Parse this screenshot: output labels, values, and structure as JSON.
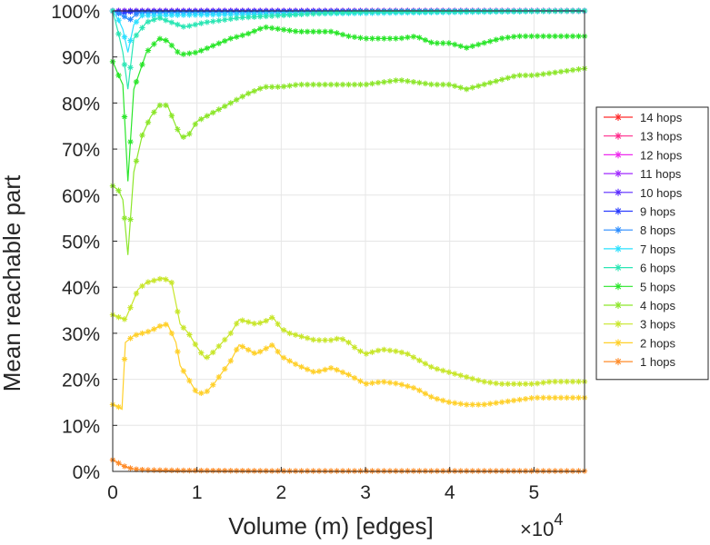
{
  "chart_data": {
    "type": "line",
    "title": "",
    "xlabel": "Volume (m) [edges]",
    "ylabel": "Mean reachable part",
    "x_multiplier_label": {
      "base": "×10",
      "exp": "4"
    },
    "xlim": [
      0,
      56000
    ],
    "ylim": [
      0,
      100
    ],
    "x_ticks": [
      0,
      10000,
      20000,
      30000,
      40000,
      50000
    ],
    "x_tick_labels": [
      "0",
      "1",
      "2",
      "3",
      "4",
      "5"
    ],
    "y_ticks": [
      0,
      10,
      20,
      30,
      40,
      50,
      60,
      70,
      80,
      90,
      100
    ],
    "y_tick_labels": [
      "0%",
      "10%",
      "20%",
      "30%",
      "40%",
      "50%",
      "60%",
      "70%",
      "80%",
      "90%",
      "100%"
    ],
    "grid": true,
    "legend_position": "right",
    "marker": "asterisk",
    "series": [
      {
        "name": "14 hops",
        "color": "#ff2a2a",
        "points": [
          [
            0,
            100
          ],
          [
            56000,
            100
          ]
        ]
      },
      {
        "name": "13 hops",
        "color": "#ff2a8c",
        "points": [
          [
            0,
            100
          ],
          [
            56000,
            100
          ]
        ]
      },
      {
        "name": "12 hops",
        "color": "#ee2aee",
        "points": [
          [
            0,
            100
          ],
          [
            56000,
            100
          ]
        ]
      },
      {
        "name": "11 hops",
        "color": "#a02aff",
        "points": [
          [
            0,
            100
          ],
          [
            56000,
            100
          ]
        ]
      },
      {
        "name": "10 hops",
        "color": "#5a2aff",
        "points": [
          [
            0,
            100
          ],
          [
            56000,
            100
          ]
        ]
      },
      {
        "name": "9 hops",
        "color": "#2a3cff",
        "points": [
          [
            0,
            100
          ],
          [
            1200,
            99.5
          ],
          [
            2000,
            99.8
          ],
          [
            56000,
            100
          ]
        ]
      },
      {
        "name": "8 hops",
        "color": "#2a8cff",
        "points": [
          [
            0,
            100
          ],
          [
            1200,
            99
          ],
          [
            2000,
            98
          ],
          [
            3000,
            99.6
          ],
          [
            56000,
            100
          ]
        ]
      },
      {
        "name": "7 hops",
        "color": "#2ae0ff",
        "points": [
          [
            0,
            100
          ],
          [
            700,
            98
          ],
          [
            1200,
            96
          ],
          [
            1800,
            91
          ],
          [
            2500,
            97
          ],
          [
            3500,
            99
          ],
          [
            56000,
            100
          ]
        ]
      },
      {
        "name": "6 hops",
        "color": "#2ae6b4",
        "points": [
          [
            0,
            100
          ],
          [
            700,
            95
          ],
          [
            1200,
            91
          ],
          [
            1800,
            83
          ],
          [
            2500,
            94
          ],
          [
            4000,
            97.5
          ],
          [
            5500,
            98.5
          ],
          [
            7000,
            97.5
          ],
          [
            8500,
            96.5
          ],
          [
            11000,
            97.5
          ],
          [
            15000,
            98.5
          ],
          [
            20000,
            99
          ],
          [
            25000,
            99.5
          ],
          [
            30000,
            99.8
          ],
          [
            56000,
            100
          ]
        ]
      },
      {
        "name": "5 hops",
        "color": "#2ae62a",
        "points": [
          [
            0,
            89
          ],
          [
            700,
            86
          ],
          [
            1200,
            84
          ],
          [
            1800,
            63
          ],
          [
            2500,
            83
          ],
          [
            4000,
            91
          ],
          [
            5500,
            94
          ],
          [
            6500,
            93.5
          ],
          [
            8000,
            90.5
          ],
          [
            10000,
            91
          ],
          [
            12000,
            92.5
          ],
          [
            14000,
            94
          ],
          [
            16000,
            95
          ],
          [
            18000,
            96.5
          ],
          [
            20000,
            96
          ],
          [
            22000,
            95.5
          ],
          [
            24000,
            95.5
          ],
          [
            26000,
            95.5
          ],
          [
            28000,
            94.5
          ],
          [
            30000,
            94
          ],
          [
            32000,
            94
          ],
          [
            34000,
            94
          ],
          [
            36000,
            94.5
          ],
          [
            38000,
            93
          ],
          [
            40000,
            93
          ],
          [
            42000,
            92
          ],
          [
            44000,
            93
          ],
          [
            46000,
            94
          ],
          [
            48000,
            94.5
          ],
          [
            50000,
            94.5
          ],
          [
            52000,
            94.5
          ],
          [
            54000,
            94.5
          ],
          [
            56000,
            94.5
          ]
        ]
      },
      {
        "name": "4 hops",
        "color": "#8ce62a",
        "points": [
          [
            0,
            62
          ],
          [
            700,
            61
          ],
          [
            1200,
            59
          ],
          [
            1800,
            47
          ],
          [
            2500,
            65
          ],
          [
            3500,
            73
          ],
          [
            4500,
            77
          ],
          [
            5500,
            79.5
          ],
          [
            6500,
            79.5
          ],
          [
            7500,
            75
          ],
          [
            8200,
            72.5
          ],
          [
            9000,
            73
          ],
          [
            10000,
            76
          ],
          [
            12000,
            78
          ],
          [
            14000,
            80
          ],
          [
            16000,
            82
          ],
          [
            18000,
            83.5
          ],
          [
            20000,
            83.5
          ],
          [
            22000,
            84
          ],
          [
            24000,
            84
          ],
          [
            26000,
            84
          ],
          [
            28000,
            84
          ],
          [
            30000,
            84
          ],
          [
            32000,
            84.5
          ],
          [
            34000,
            85
          ],
          [
            36000,
            84.5
          ],
          [
            38000,
            84
          ],
          [
            40000,
            84
          ],
          [
            42000,
            83
          ],
          [
            44000,
            84
          ],
          [
            46000,
            85
          ],
          [
            48000,
            86
          ],
          [
            50000,
            86
          ],
          [
            52000,
            86.5
          ],
          [
            54000,
            87
          ],
          [
            56000,
            87.5
          ]
        ]
      },
      {
        "name": "3 hops",
        "color": "#c8e62a",
        "points": [
          [
            0,
            34
          ],
          [
            700,
            33.5
          ],
          [
            1500,
            33
          ],
          [
            2200,
            36
          ],
          [
            3000,
            39.5
          ],
          [
            4000,
            41
          ],
          [
            5000,
            41.5
          ],
          [
            6000,
            42
          ],
          [
            7000,
            41
          ],
          [
            8000,
            32
          ],
          [
            9000,
            30
          ],
          [
            10000,
            27
          ],
          [
            11000,
            24.5
          ],
          [
            12000,
            26
          ],
          [
            13000,
            28
          ],
          [
            14000,
            30
          ],
          [
            15000,
            33
          ],
          [
            16000,
            32.5
          ],
          [
            17000,
            32
          ],
          [
            18000,
            32.5
          ],
          [
            19000,
            33.5
          ],
          [
            20000,
            31
          ],
          [
            21000,
            30
          ],
          [
            22000,
            29.5
          ],
          [
            24000,
            28.5
          ],
          [
            26000,
            28.5
          ],
          [
            27000,
            29
          ],
          [
            28000,
            28
          ],
          [
            29000,
            26.5
          ],
          [
            30000,
            25.5
          ],
          [
            31000,
            26
          ],
          [
            32000,
            26.5
          ],
          [
            34000,
            26
          ],
          [
            35000,
            25.5
          ],
          [
            36000,
            24.5
          ],
          [
            38000,
            22.5
          ],
          [
            40000,
            21.5
          ],
          [
            42000,
            20.5
          ],
          [
            44000,
            19.5
          ],
          [
            46000,
            19
          ],
          [
            48000,
            19
          ],
          [
            50000,
            19
          ],
          [
            52000,
            19.5
          ],
          [
            54000,
            19.5
          ],
          [
            56000,
            19.5
          ]
        ]
      },
      {
        "name": "2 hops",
        "color": "#ffd02a",
        "points": [
          [
            0,
            14.5
          ],
          [
            700,
            14
          ],
          [
            1100,
            13.5
          ],
          [
            1500,
            28
          ],
          [
            2500,
            29.5
          ],
          [
            3500,
            30
          ],
          [
            4500,
            30.5
          ],
          [
            5500,
            31.5
          ],
          [
            6500,
            32
          ],
          [
            7500,
            28
          ],
          [
            8000,
            23
          ],
          [
            9000,
            20
          ],
          [
            10000,
            17
          ],
          [
            11000,
            17
          ],
          [
            12000,
            19
          ],
          [
            13000,
            21.5
          ],
          [
            14000,
            24
          ],
          [
            15000,
            27.5
          ],
          [
            16000,
            26.5
          ],
          [
            17000,
            25.5
          ],
          [
            18000,
            26.5
          ],
          [
            19000,
            27.5
          ],
          [
            20000,
            25
          ],
          [
            22000,
            23
          ],
          [
            24000,
            21.5
          ],
          [
            26000,
            22.5
          ],
          [
            28000,
            21
          ],
          [
            30000,
            19
          ],
          [
            32000,
            19.5
          ],
          [
            34000,
            19
          ],
          [
            36000,
            18
          ],
          [
            38000,
            16
          ],
          [
            40000,
            15
          ],
          [
            42000,
            14.5
          ],
          [
            44000,
            14.5
          ],
          [
            46000,
            15
          ],
          [
            48000,
            15.5
          ],
          [
            50000,
            16
          ],
          [
            52000,
            16
          ],
          [
            54000,
            16
          ],
          [
            56000,
            16
          ]
        ]
      },
      {
        "name": "1 hops",
        "color": "#ff8c2a",
        "points": [
          [
            0,
            2.5
          ],
          [
            500,
            2
          ],
          [
            1000,
            1.5
          ],
          [
            1500,
            1
          ],
          [
            2500,
            0.5
          ],
          [
            4000,
            0.3
          ],
          [
            8000,
            0.2
          ],
          [
            20000,
            0.1
          ],
          [
            56000,
            0.1
          ]
        ]
      }
    ]
  }
}
